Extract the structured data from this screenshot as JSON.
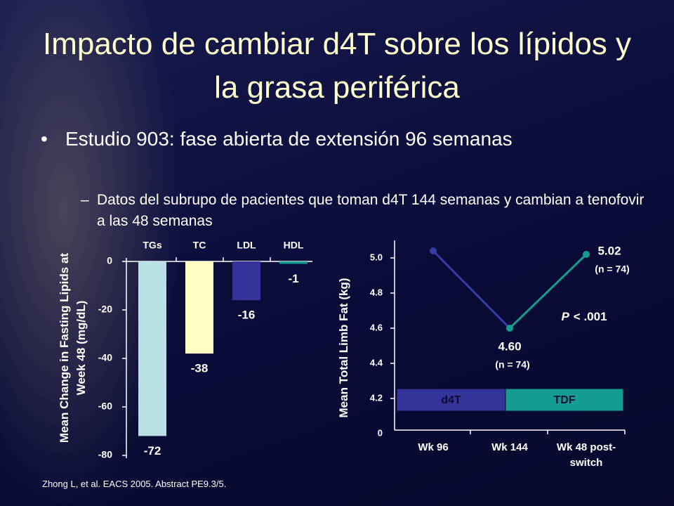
{
  "title": "Impacto de cambiar d4T sobre los lípidos y la grasa periférica",
  "bullets": [
    {
      "text": "Estudio 903: fase abierta de extensión 96 semanas",
      "sub": [
        "Datos del subrupo de pacientes que toman d4T 144 semanas y cambian a tenofovir a las 48 semanas"
      ]
    }
  ],
  "footnote": "Zhong L, et al. EACS 2005. Abstract PE9.3/5.",
  "chart_data": [
    {
      "type": "bar",
      "y_label": "Mean Change in Fasting Lipids at Week 48 (mg/dL)",
      "categories": [
        "TGs",
        "TC",
        "LDL",
        "HDL"
      ],
      "values": [
        -72,
        -38,
        -16,
        -1
      ],
      "colors": [
        "#b9e1e3",
        "#ffffc4",
        "#34349a",
        "#149c90"
      ],
      "ylim": [
        -80,
        0
      ],
      "yticks": [
        0,
        -20,
        -40,
        -60,
        -80
      ]
    },
    {
      "type": "line",
      "y_label": "Mean Total Limb Fat (kg)",
      "categories": [
        "Wk 96",
        "Wk 144",
        "Wk 48 post-switch"
      ],
      "values": [
        5.04,
        4.6,
        5.02
      ],
      "value_labels": [
        null,
        "4.60",
        "5.02"
      ],
      "n_labels": [
        null,
        "(n = 74)",
        "(n = 74)"
      ],
      "segment_colors": [
        "#3a3aa6",
        "#159c8e"
      ],
      "point_colors": [
        "#3a3aa6",
        "#159c8e",
        "#159c8e"
      ],
      "ylim": [
        4.0,
        5.1
      ],
      "yticks": [
        0,
        {
          "value": 4.2,
          "label": "4.2"
        },
        {
          "value": 4.4,
          "label": "4.4"
        },
        {
          "value": 4.6,
          "label": "4.6"
        },
        {
          "value": 4.8,
          "label": "4.8"
        },
        {
          "value": 5.0,
          "label": "5.0"
        }
      ],
      "axis_break": true,
      "phases": [
        {
          "label": "d4T",
          "color": "#34349a"
        },
        {
          "label": "TDF",
          "color": "#149c90"
        }
      ],
      "p_label": {
        "symbol": "P",
        "text": "< .001"
      }
    }
  ]
}
